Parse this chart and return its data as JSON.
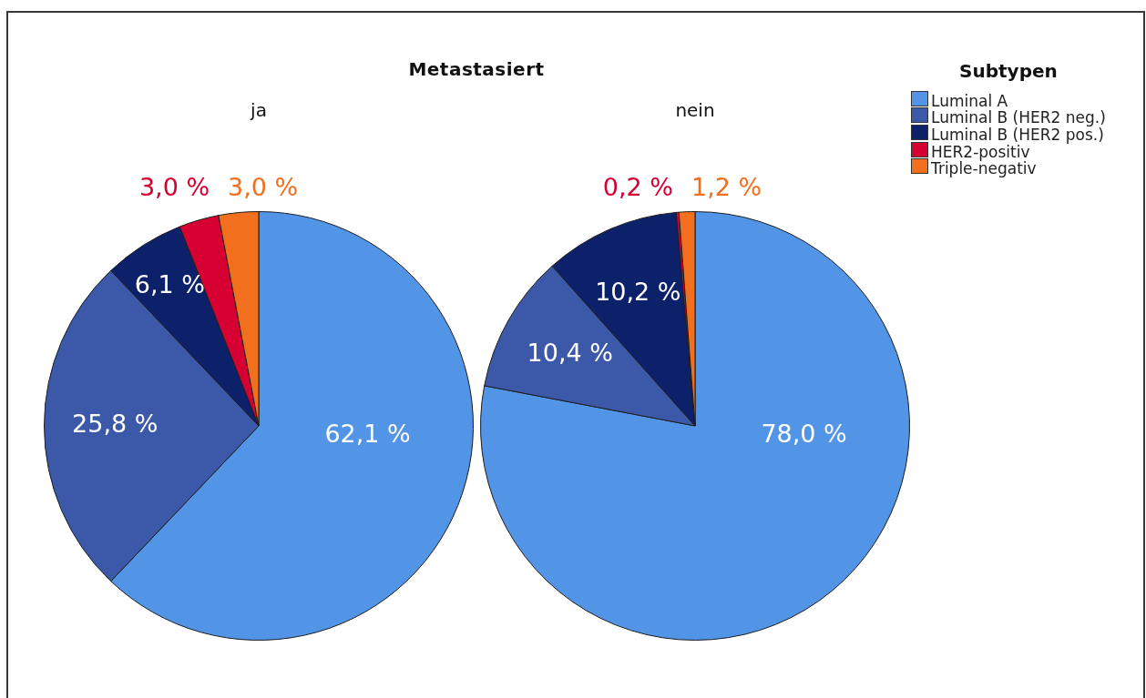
{
  "chart_data": {
    "type": "pie",
    "title": "Metastasiert",
    "categories": [
      "Luminal A",
      "Luminal B (HER2 neg.)",
      "Luminal B (HER2 pos.)",
      "HER2-positiv",
      "Triple-negativ"
    ],
    "colors": [
      "#5294e6",
      "#3c58a8",
      "#0c2169",
      "#d60032",
      "#f26f1e"
    ],
    "series": [
      {
        "name": "ja",
        "values": [
          62.1,
          25.8,
          6.1,
          3.0,
          3.0
        ],
        "value_labels": [
          "62,1 %",
          "25,8 %",
          "6,1 %",
          "3,0 %",
          "3,0 %"
        ]
      },
      {
        "name": "nein",
        "values": [
          78.0,
          10.4,
          10.2,
          0.2,
          1.2
        ],
        "value_labels": [
          "78,0 %",
          "10,4 %",
          "10,2 %",
          "0,2 %",
          "1,2 %"
        ]
      }
    ],
    "legend": "top right",
    "legend_title": "Subtypen"
  }
}
